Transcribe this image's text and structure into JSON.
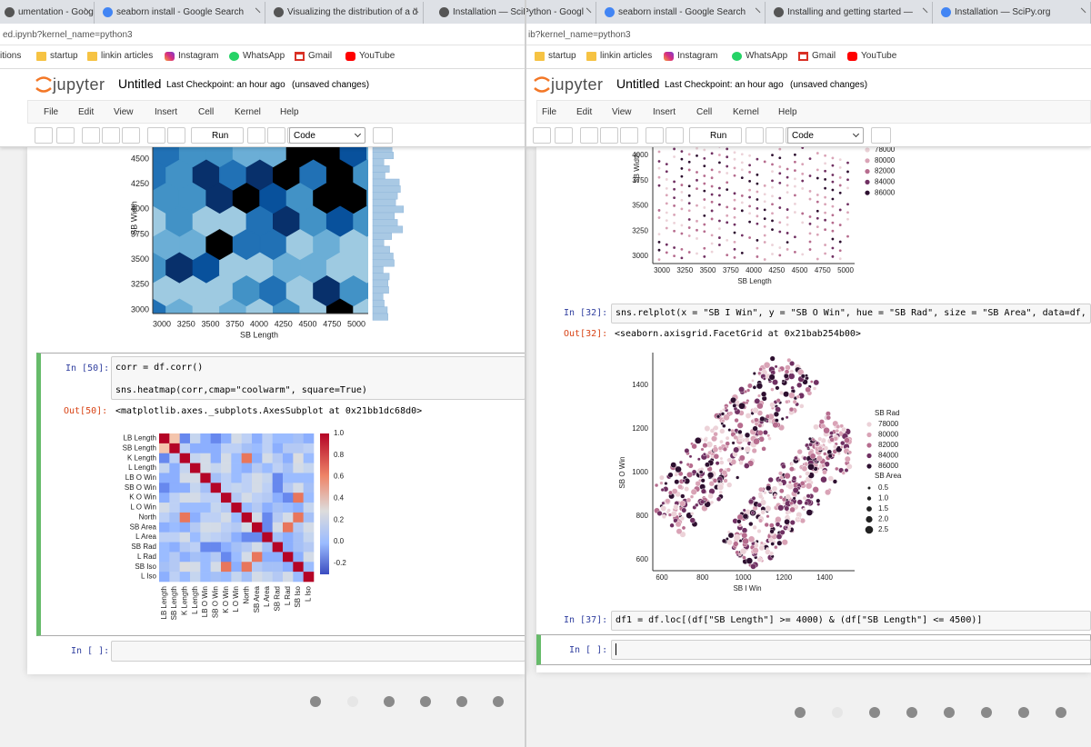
{
  "left": {
    "tabs": [
      "umentation - Google",
      "seaborn install - Google Search",
      "Visualizing the distribution of a d"
    ],
    "url": "ed.ipynb?kernel_name=python3",
    "bookmarks": [
      "itions",
      "startup",
      "linkin articles",
      "Instagram",
      "WhatsApp",
      "Gmail",
      "YouTube"
    ],
    "logo": "jupyter",
    "notebook_name": "Untitled",
    "checkpoint": "Last Checkpoint: an hour ago",
    "status": "(unsaved changes)",
    "menu": [
      "File",
      "Edit",
      "View",
      "Insert",
      "Cell",
      "Kernel",
      "Help"
    ],
    "run": "Run",
    "cell_type": "Code",
    "hexbin": {
      "ylabel": "SB Width",
      "xlabel": "SB Length",
      "yticks": [
        "4500",
        "4250",
        "4000",
        "3750",
        "3500",
        "3250",
        "3000"
      ],
      "xticks": [
        "3000",
        "3250",
        "3500",
        "3750",
        "4000",
        "4250",
        "4500",
        "4750",
        "5000"
      ]
    },
    "cell": {
      "prompt": "In [50]:",
      "code": [
        "corr = df.corr()",
        "sns.heatmap(corr,cmap=\"coolwarm\", square=True)"
      ],
      "out_prompt": "Out[50]:",
      "output": "<matplotlib.axes._subplots.AxesSubplot at 0x21bb1dc68d0>"
    },
    "heatmap": {
      "labels": [
        "LB Length",
        "SB Length",
        "K Length",
        "L Length",
        "LB O Win",
        "SB O Win",
        "K O Win",
        "L O Win",
        "North",
        "SB Area",
        "L Area",
        "SB Rad",
        "L Rad",
        "SB Iso",
        "L Iso"
      ],
      "colorbar": [
        "1.0",
        "0.8",
        "0.6",
        "0.4",
        "0.2",
        "0.0",
        "-0.2"
      ]
    },
    "empty_prompt": "In [ ]:"
  },
  "right": {
    "tabs": [
      "Installation — SciPython - Googl",
      "seaborn install - Google Search",
      "Installing and getting started —",
      "Installation — SciPy.org"
    ],
    "url": "ib?kernel_name=python3",
    "bookmarks": [
      "startup",
      "linkin articles",
      "Instagram",
      "WhatsApp",
      "Gmail",
      "YouTube"
    ],
    "logo": "jupyter",
    "notebook_name": "Untitled",
    "checkpoint": "Last Checkpoint: an hour ago",
    "status": "(unsaved changes)",
    "menu": [
      "File",
      "Edit",
      "View",
      "Insert",
      "Cell",
      "Kernel",
      "Help"
    ],
    "run": "Run",
    "cell_type": "Code",
    "scatter_top": {
      "ylabel": "SB Width",
      "xlabel": "SB Length",
      "yticks": [
        "4000",
        "3750",
        "3500",
        "3250",
        "3000"
      ],
      "xticks": [
        "3000",
        "3250",
        "3500",
        "3750",
        "4000",
        "4250",
        "4500",
        "4750",
        "5000"
      ],
      "legend": [
        "78000",
        "80000",
        "82000",
        "84000",
        "86000"
      ]
    },
    "cells": [
      {
        "prompt": "In [32]:",
        "code": "sns.relplot(x = \"SB I Win\", y = \"SB O Win\", hue = \"SB Rad\", size = \"SB Area\", data=df, s",
        "out_prompt": "Out[32]:",
        "output": "<seaborn.axisgrid.FacetGrid at 0x21bab254b00>"
      },
      {
        "prompt": "In [37]:",
        "code": "df1 = df.loc[(df[\"SB Length\"] >= 4000) & (df[\"SB Length\"] <= 4500)]"
      }
    ],
    "scatter": {
      "ylabel": "SB O Win",
      "xlabel": "SB I Win",
      "yticks": [
        "1400",
        "1200",
        "1000",
        "800",
        "600"
      ],
      "xticks": [
        "600",
        "800",
        "1000",
        "1200",
        "1400"
      ],
      "hue_title": "SB Rad",
      "hue": [
        "78000",
        "80000",
        "82000",
        "84000",
        "86000"
      ],
      "size_title": "SB Area",
      "sizes": [
        "0.5",
        "1.0",
        "1.5",
        "2.0",
        "2.5"
      ]
    },
    "empty_prompt": "In [ ]:"
  }
}
